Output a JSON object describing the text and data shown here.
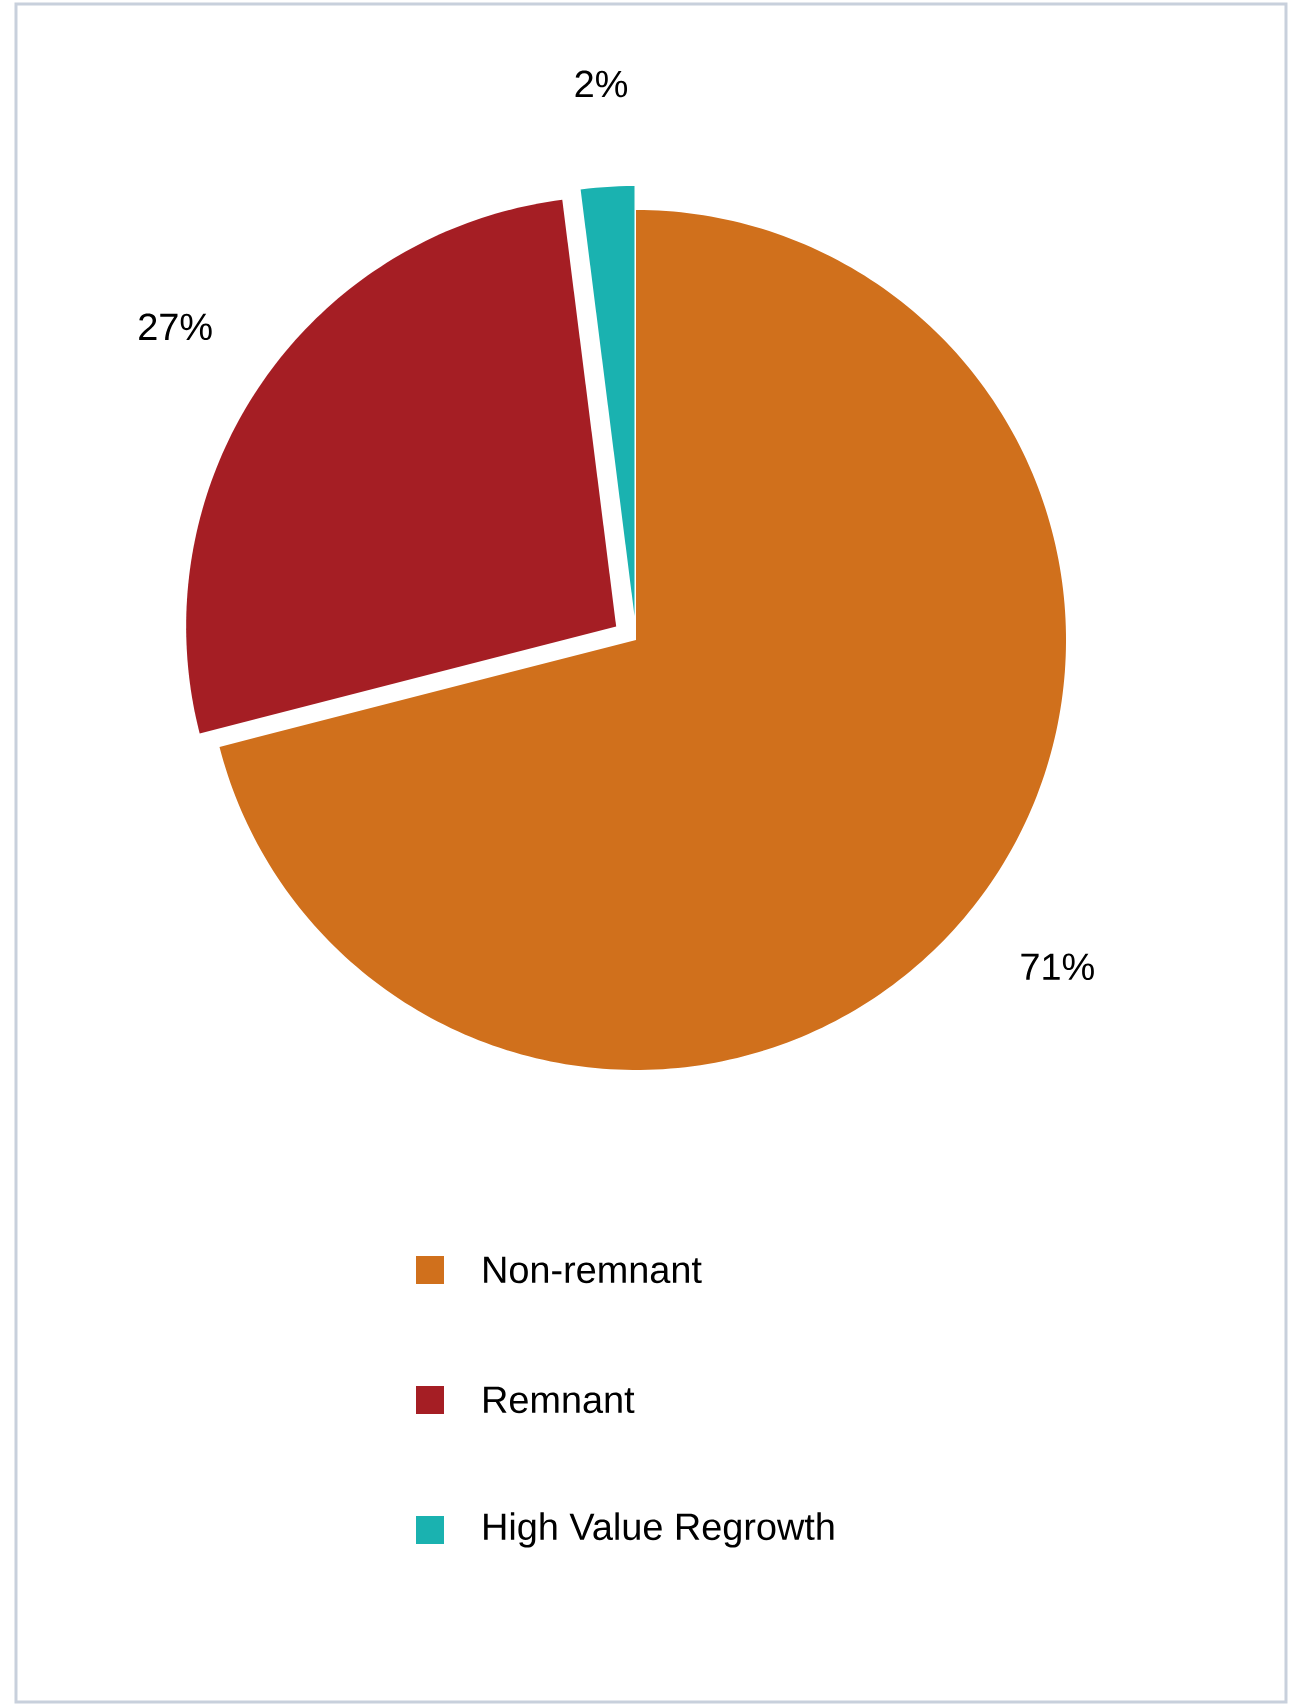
{
  "chart_data": {
    "type": "pie",
    "categories": [
      "Non-remnant",
      "Remnant",
      "High Value Regrowth"
    ],
    "values": [
      71,
      27,
      2
    ],
    "colors": [
      "#d0701c",
      "#a51e24",
      "#1ab2b0"
    ],
    "value_labels": [
      "71%",
      "27%",
      "2%"
    ],
    "legend": "bottom"
  }
}
